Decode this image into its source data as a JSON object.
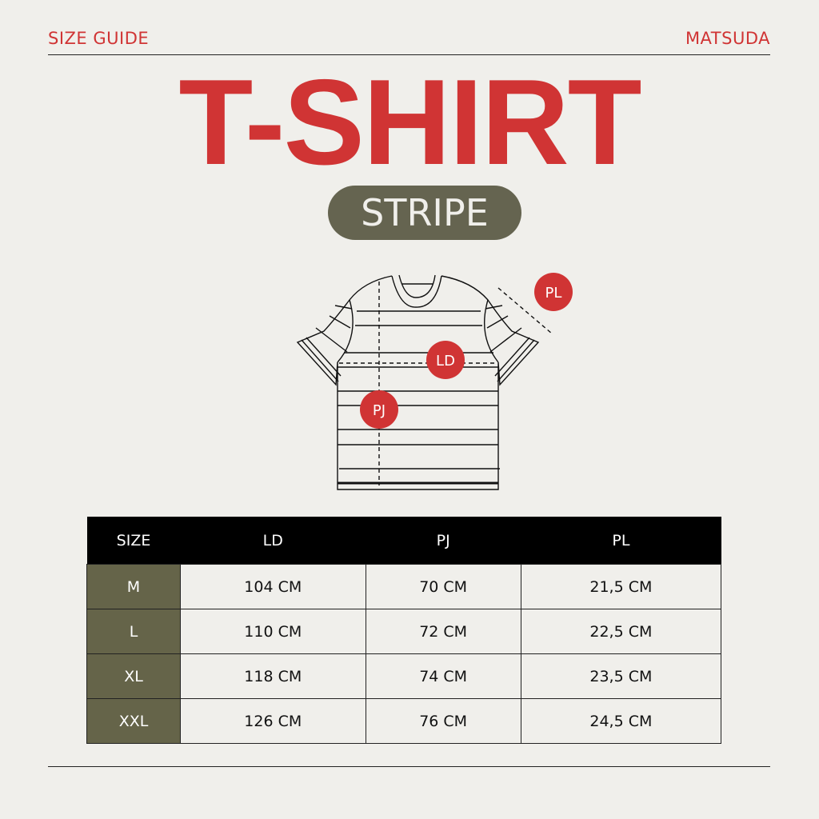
{
  "header": {
    "left": "SIZE GUIDE",
    "right": "MATSUDA"
  },
  "title": "T-SHIRT",
  "variant": "STRIPE",
  "diagram": {
    "labels": [
      "PL",
      "LD",
      "PJ"
    ]
  },
  "colors": {
    "accent": "#d03434",
    "olive": "#656449",
    "background": "#f0efeb"
  },
  "table": {
    "headers": [
      "SIZE",
      "LD",
      "PJ",
      "PL"
    ],
    "rows": [
      [
        "M",
        "104 CM",
        "70 CM",
        "21,5 CM"
      ],
      [
        "L",
        "110 CM",
        "72 CM",
        "22,5 CM"
      ],
      [
        "XL",
        "118 CM",
        "74 CM",
        "23,5 CM"
      ],
      [
        "XXL",
        "126 CM",
        "76 CM",
        "24,5 CM"
      ]
    ]
  }
}
